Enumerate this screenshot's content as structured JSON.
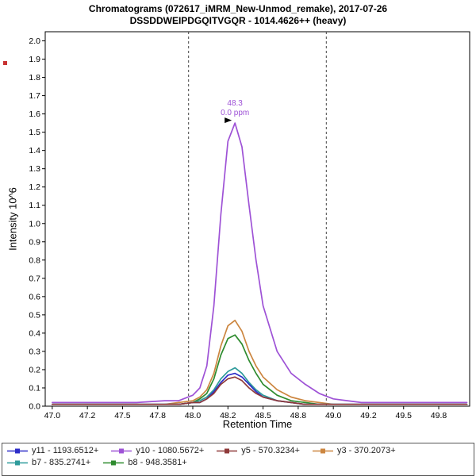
{
  "header": {
    "title_line1": "Chromatograms (072617_iMRM_New-Unmod_remake), 2017-07-26",
    "title_line2": "DSSDDWEIPDGQITVGQR - 1014.4626++ (heavy)"
  },
  "artifact": {
    "color": "#C83232"
  },
  "chart_data": {
    "type": "line",
    "title": "Chromatograms (072617_iMRM_New-Unmod_remake), 2017-07-26",
    "subtitle": "DSSDDWEIPDGQITVGQR - 1014.4626++ (heavy)",
    "xlabel": "Retention Time",
    "ylabel": "Intensity 10^6",
    "grid": false,
    "legend_position": "bottom",
    "xlim": [
      46.95,
      49.97
    ],
    "ylim": [
      0,
      2.05
    ],
    "x_ticks": [
      {
        "v": 47.0,
        "label": "47.0"
      },
      {
        "v": 47.25,
        "label": "47.2"
      },
      {
        "v": 47.5,
        "label": "47.5"
      },
      {
        "v": 47.75,
        "label": "47.8"
      },
      {
        "v": 48.0,
        "label": "48.0"
      },
      {
        "v": 48.25,
        "label": "48.2"
      },
      {
        "v": 48.5,
        "label": "48.5"
      },
      {
        "v": 48.75,
        "label": "48.8"
      },
      {
        "v": 49.0,
        "label": "49.0"
      },
      {
        "v": 49.25,
        "label": "49.2"
      },
      {
        "v": 49.5,
        "label": "49.5"
      },
      {
        "v": 49.75,
        "label": "49.8"
      }
    ],
    "y_ticks": [
      0,
      0.1,
      0.2,
      0.3,
      0.4,
      0.5,
      0.6,
      0.7,
      0.8,
      0.9,
      1.0,
      1.1,
      1.2,
      1.3,
      1.4,
      1.5,
      1.6,
      1.7,
      1.8,
      1.9,
      2.0
    ],
    "boundaries": [
      47.97,
      48.95
    ],
    "annotation": {
      "rt": "48.3",
      "ppm": "0.0 ppm",
      "x": 48.3,
      "y": 1.55,
      "color": "#9E52D6"
    },
    "x": [
      47.0,
      47.2,
      47.4,
      47.6,
      47.8,
      47.9,
      48.0,
      48.05,
      48.1,
      48.15,
      48.2,
      48.25,
      48.3,
      48.35,
      48.4,
      48.45,
      48.5,
      48.6,
      48.7,
      48.8,
      48.9,
      49.0,
      49.1,
      49.2,
      49.4,
      49.6,
      49.8,
      49.95
    ],
    "series": [
      {
        "name": "y11 - 1193.6512+",
        "color": "#2D2DC8",
        "values": [
          0.01,
          0.01,
          0.01,
          0.01,
          0.01,
          0.01,
          0.02,
          0.02,
          0.04,
          0.08,
          0.13,
          0.17,
          0.18,
          0.16,
          0.12,
          0.08,
          0.05,
          0.03,
          0.02,
          0.01,
          0.01,
          0.01,
          0.01,
          0.01,
          0.01,
          0.01,
          0.01,
          0.01
        ]
      },
      {
        "name": "y10 - 1080.5672+",
        "color": "#9E52D6",
        "values": [
          0.02,
          0.02,
          0.02,
          0.02,
          0.03,
          0.03,
          0.06,
          0.1,
          0.22,
          0.55,
          1.05,
          1.45,
          1.55,
          1.42,
          1.1,
          0.8,
          0.55,
          0.3,
          0.18,
          0.12,
          0.07,
          0.04,
          0.03,
          0.02,
          0.02,
          0.02,
          0.02,
          0.02
        ]
      },
      {
        "name": "y5 - 570.3234+",
        "color": "#8F3A3A",
        "values": [
          0.01,
          0.01,
          0.01,
          0.01,
          0.01,
          0.01,
          0.02,
          0.02,
          0.04,
          0.07,
          0.12,
          0.15,
          0.16,
          0.14,
          0.1,
          0.07,
          0.05,
          0.03,
          0.02,
          0.01,
          0.01,
          0.01,
          0.01,
          0.01,
          0.01,
          0.01,
          0.01,
          0.01
        ]
      },
      {
        "name": "y3 - 370.2073+",
        "color": "#CC8640",
        "values": [
          0.01,
          0.01,
          0.01,
          0.01,
          0.01,
          0.02,
          0.03,
          0.05,
          0.09,
          0.18,
          0.33,
          0.44,
          0.47,
          0.41,
          0.3,
          0.22,
          0.16,
          0.09,
          0.05,
          0.03,
          0.02,
          0.01,
          0.01,
          0.01,
          0.01,
          0.01,
          0.01,
          0.01
        ]
      },
      {
        "name": "b7 - 835.2741+",
        "color": "#2E9B9B",
        "values": [
          0.01,
          0.01,
          0.01,
          0.01,
          0.01,
          0.01,
          0.02,
          0.03,
          0.05,
          0.09,
          0.15,
          0.19,
          0.21,
          0.18,
          0.13,
          0.09,
          0.06,
          0.03,
          0.02,
          0.01,
          0.01,
          0.01,
          0.01,
          0.01,
          0.01,
          0.01,
          0.01,
          0.01
        ]
      },
      {
        "name": "b8 - 948.3581+",
        "color": "#2E8B2E",
        "values": [
          0.01,
          0.01,
          0.01,
          0.01,
          0.01,
          0.01,
          0.02,
          0.04,
          0.07,
          0.15,
          0.28,
          0.37,
          0.39,
          0.34,
          0.25,
          0.18,
          0.12,
          0.06,
          0.03,
          0.02,
          0.01,
          0.01,
          0.01,
          0.01,
          0.01,
          0.01,
          0.01,
          0.01
        ]
      }
    ]
  }
}
